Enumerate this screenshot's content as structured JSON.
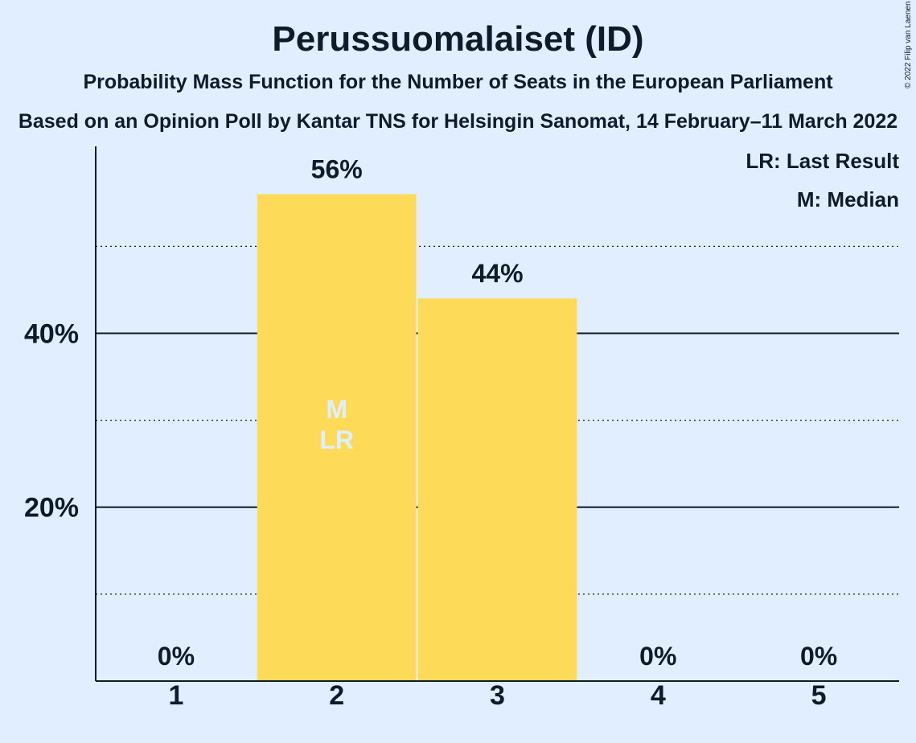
{
  "chart_data": {
    "type": "bar",
    "title": "Perussuomalaiset (ID)",
    "subtitle": "Probability Mass Function for the Number of Seats in the European Parliament",
    "subsubtitle": "Based on an Opinion Poll by Kantar TNS for Helsingin Sanomat, 14 February–11 March 2022",
    "copyright": "© 2022 Filip van Laenen",
    "categories": [
      "1",
      "2",
      "3",
      "4",
      "5"
    ],
    "values": [
      0,
      56,
      44,
      0,
      0
    ],
    "value_labels": [
      "0%",
      "56%",
      "44%",
      "0%",
      "0%"
    ],
    "bar_markers": [
      "",
      "M\nLR",
      "",
      "",
      ""
    ],
    "yticks": [
      20,
      40
    ],
    "ytick_labels": [
      "20%",
      "40%"
    ],
    "minor_gridlines": [
      10,
      30,
      50
    ],
    "ylim": [
      0,
      61.5
    ],
    "legend": [
      "LR: Last Result",
      "M: Median"
    ],
    "legend_position": "top-right",
    "bar_color": "#fdda58",
    "background_color": "#e1eeff",
    "text_color": "#0e1b2c"
  }
}
